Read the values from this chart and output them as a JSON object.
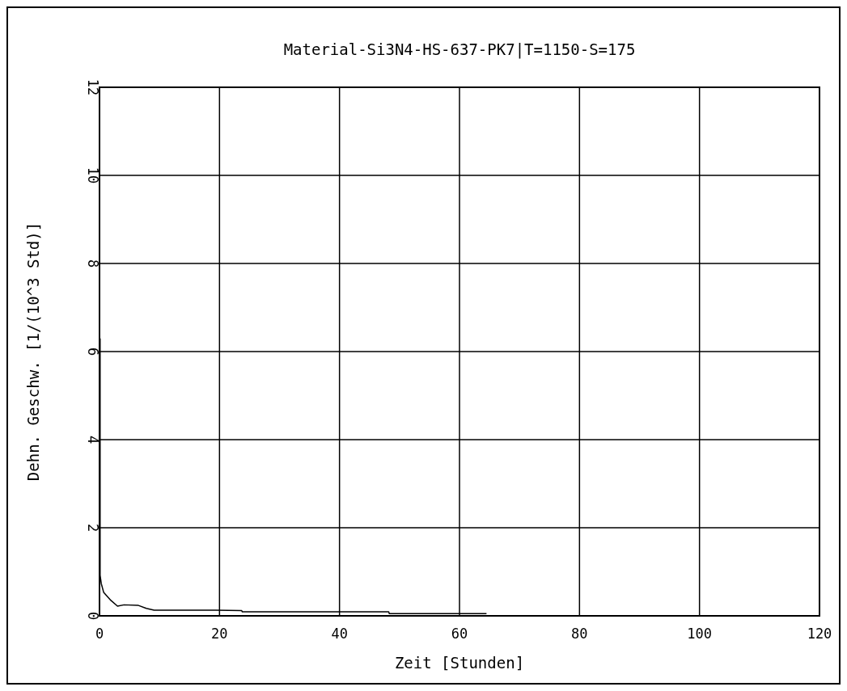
{
  "chart_data": {
    "type": "line",
    "title": "Material-Si3N4-HS-637-PK7|T=1150-S=175",
    "xlabel": "Zeit [Stunden]",
    "ylabel": "Dehn. Geschw. [1/(10^3 Std)]",
    "x": [
      0.1,
      0.1,
      0.3,
      0.7,
      1.9,
      3,
      4.1,
      6.4,
      7.8,
      9.1,
      19.3,
      23.7,
      23.8,
      48.2,
      48.3,
      64.5
    ],
    "series": [
      {
        "color": "#000000",
        "values": [
          6.3,
          0.92,
          0.73,
          0.53,
          0.35,
          0.22,
          0.25,
          0.24,
          0.17,
          0.13,
          0.13,
          0.12,
          0.09,
          0.09,
          0.05,
          0.05
        ]
      }
    ],
    "xlim": [
      0,
      120
    ],
    "xticks": [
      0,
      20,
      40,
      60,
      80,
      100,
      120
    ],
    "ylim": [
      0,
      12
    ],
    "yticks": [
      0,
      2,
      4,
      6,
      8,
      10,
      12
    ],
    "grid": true,
    "marker": "none",
    "line_style": "solid"
  }
}
